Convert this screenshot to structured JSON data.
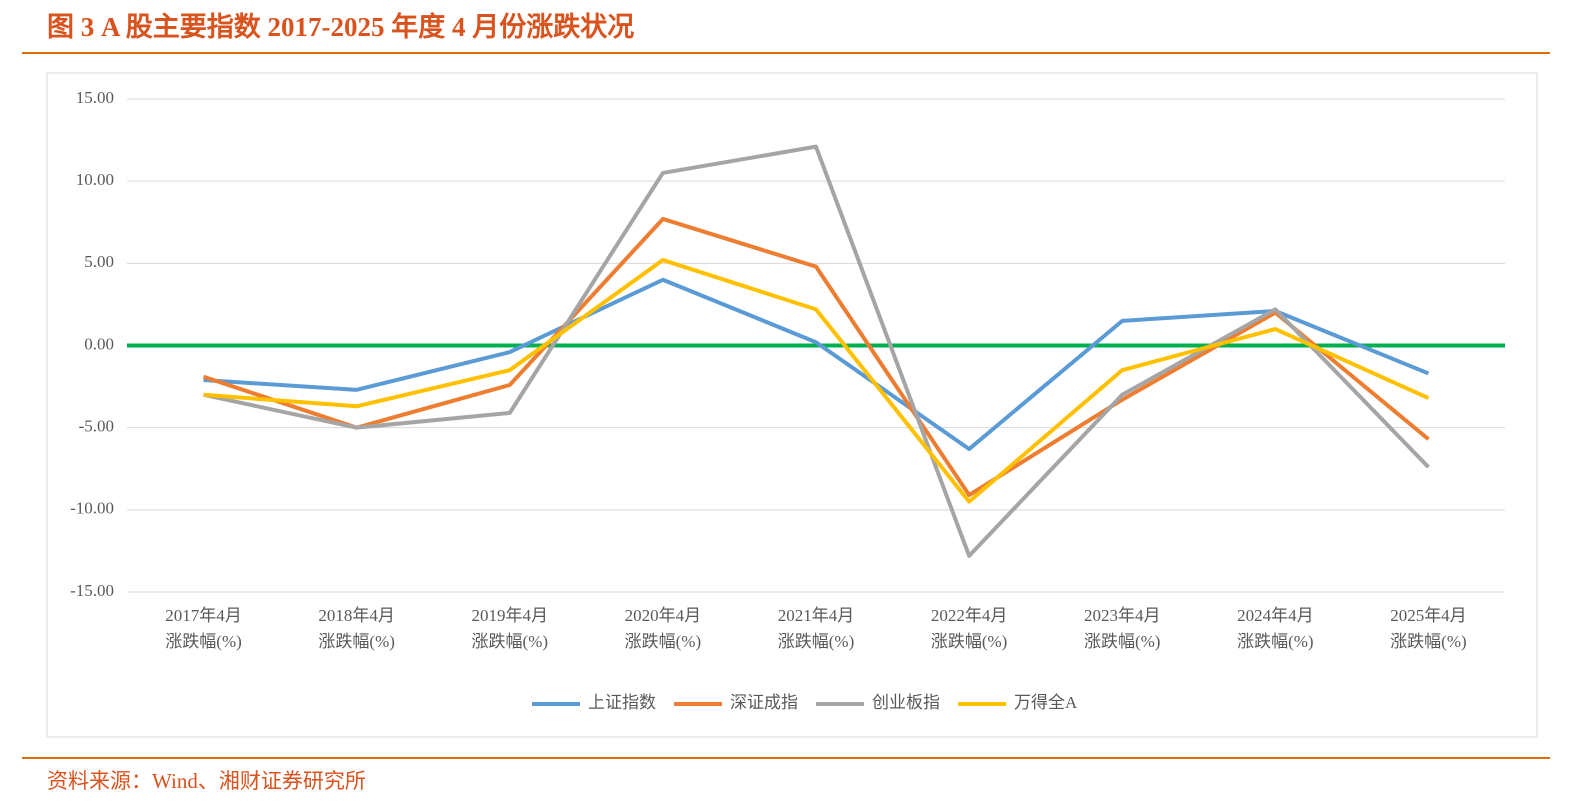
{
  "chart_data": {
    "type": "line",
    "title": "图 3 A 股主要指数 2017-2025 年度 4 月份涨跌状况",
    "categories": [
      [
        "2017年4月",
        "涨跌幅(%)"
      ],
      [
        "2018年4月",
        "涨跌幅(%)"
      ],
      [
        "2019年4月",
        "涨跌幅(%)"
      ],
      [
        "2020年4月",
        "涨跌幅(%)"
      ],
      [
        "2021年4月",
        "涨跌幅(%)"
      ],
      [
        "2022年4月",
        "涨跌幅(%)"
      ],
      [
        "2023年4月",
        "涨跌幅(%)"
      ],
      [
        "2024年4月",
        "涨跌幅(%)"
      ],
      [
        "2025年4月",
        "涨跌幅(%)"
      ]
    ],
    "series": [
      {
        "name": "上证指数",
        "color": "#5b9bd5",
        "values": [
          -2.1,
          -2.7,
          -0.4,
          4.0,
          0.2,
          -6.3,
          1.5,
          2.1,
          -1.7
        ]
      },
      {
        "name": "深证成指",
        "color": "#ed7d31",
        "values": [
          -1.9,
          -5.0,
          -2.4,
          7.7,
          4.8,
          -9.1,
          -3.3,
          2.0,
          -5.7
        ]
      },
      {
        "name": "创业板指",
        "color": "#a5a5a5",
        "values": [
          -3.0,
          -5.0,
          -4.1,
          10.5,
          12.1,
          -12.8,
          -3.0,
          2.2,
          -7.4
        ]
      },
      {
        "name": "万得全A",
        "color": "#ffc000",
        "values": [
          -3.0,
          -3.7,
          -1.5,
          5.2,
          2.2,
          -9.5,
          -1.5,
          1.0,
          -3.2
        ]
      }
    ],
    "ylim": [
      -15,
      15
    ],
    "yticks": [
      {
        "value": -15,
        "label": "-15.00"
      },
      {
        "value": -10,
        "label": "-10.00"
      },
      {
        "value": -5,
        "label": "-5.00"
      },
      {
        "value": 0,
        "label": "0.00"
      },
      {
        "value": 5,
        "label": "5.00"
      },
      {
        "value": 10,
        "label": "10.00"
      },
      {
        "value": 15,
        "label": "15.00"
      }
    ],
    "grid": true,
    "zero_line_color": "#00b050",
    "legend": "bottom"
  },
  "source": "资料来源：Wind、湘财证券研究所"
}
